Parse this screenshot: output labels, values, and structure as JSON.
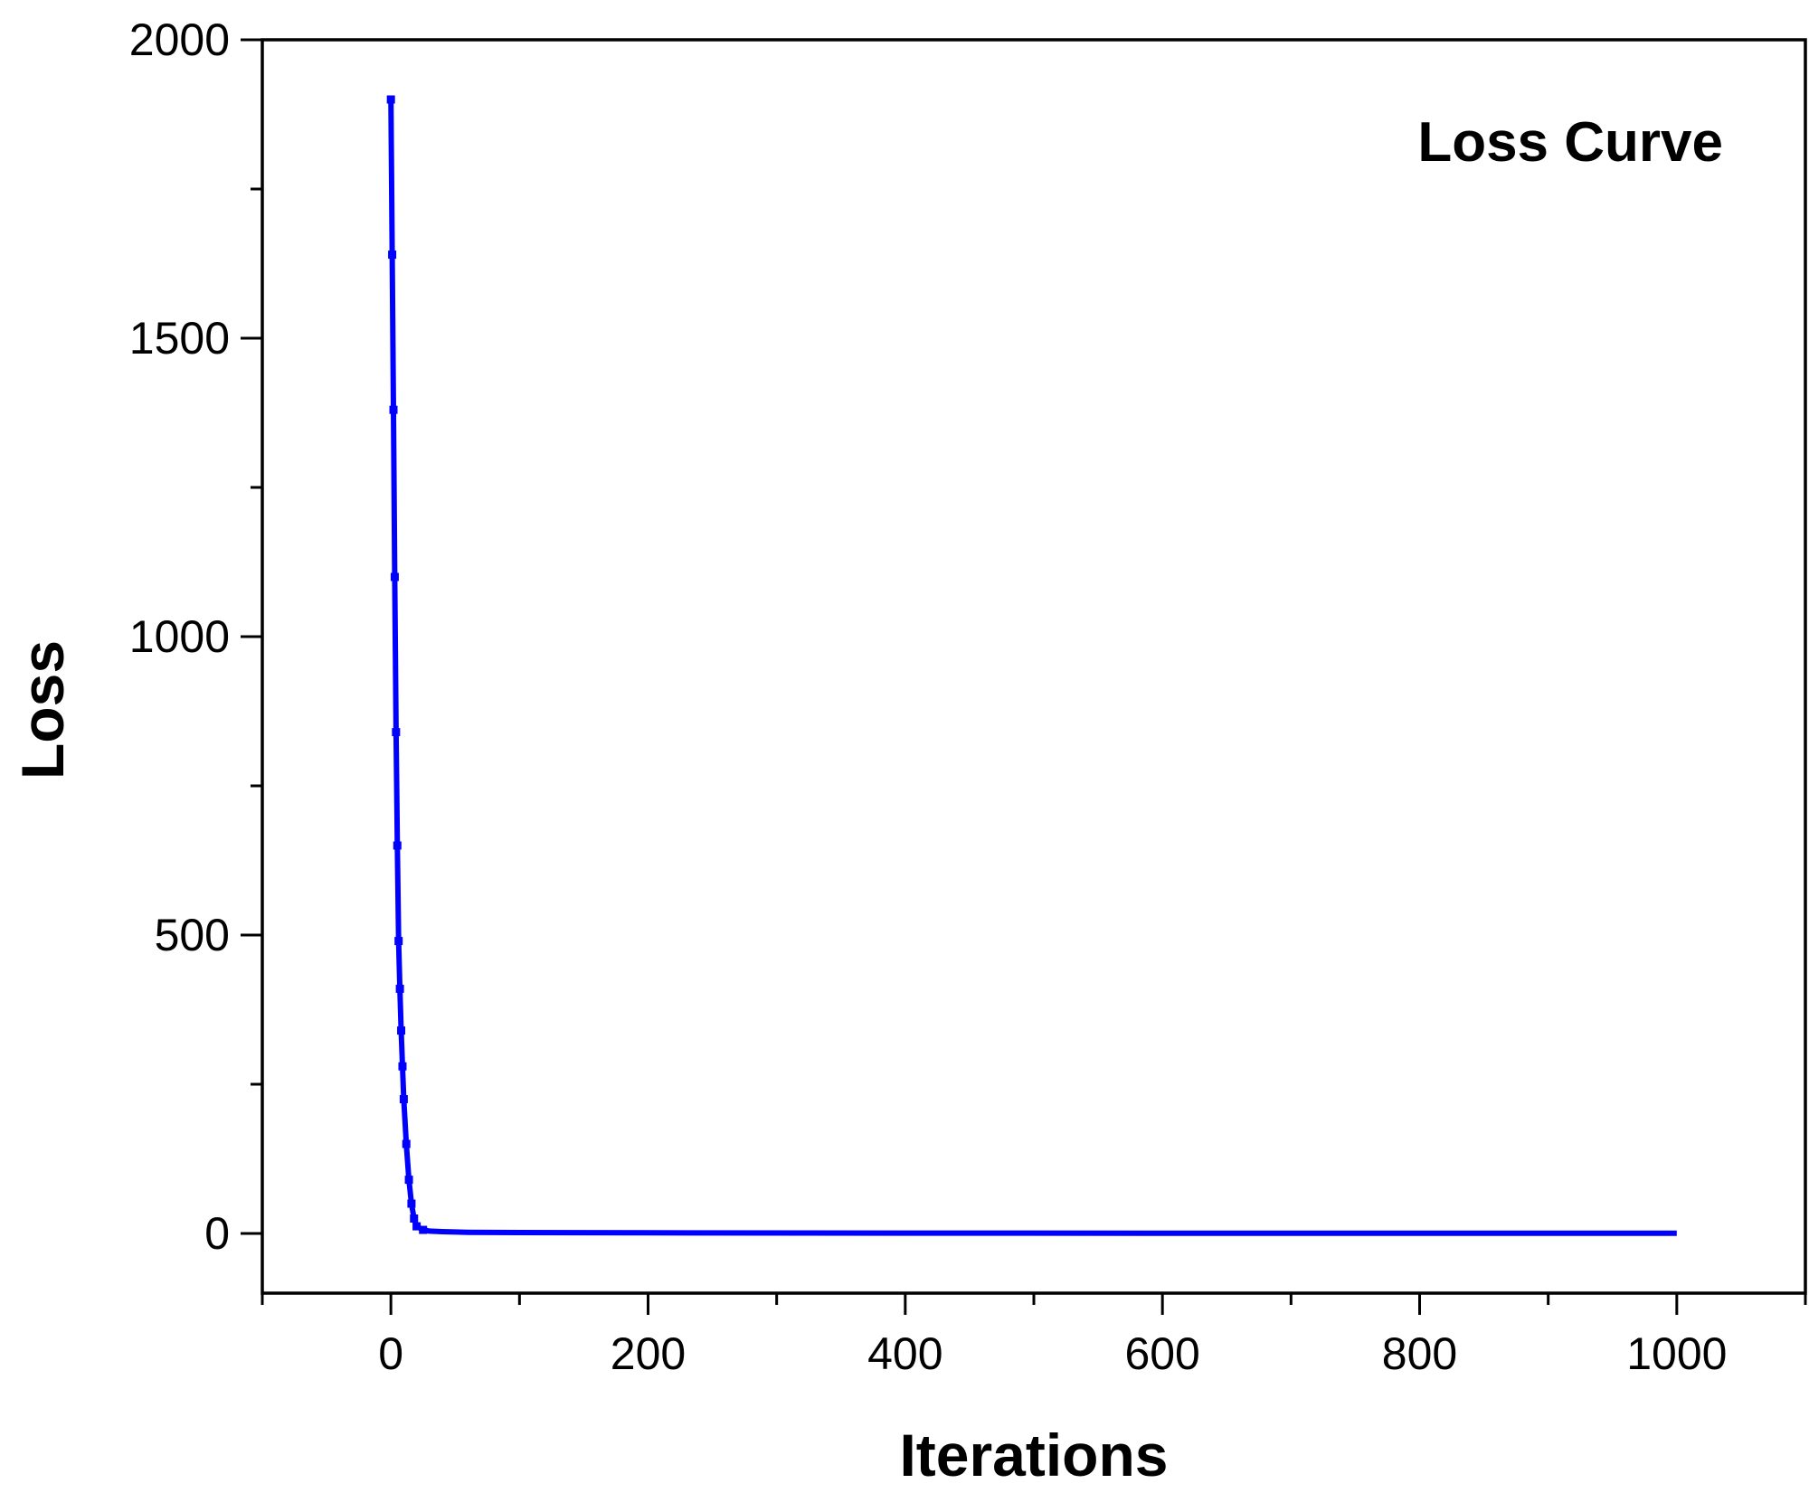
{
  "chart_data": {
    "type": "line",
    "title": "",
    "xlabel": "Iterations",
    "ylabel": "Loss",
    "xlim": [
      -100,
      1100
    ],
    "ylim": [
      -100,
      2000
    ],
    "x_ticks": [
      0,
      200,
      400,
      600,
      800,
      1000
    ],
    "x_minor_ticks": [
      -100,
      100,
      300,
      500,
      700,
      900,
      1100
    ],
    "y_ticks": [
      0,
      500,
      1000,
      1500,
      2000
    ],
    "y_minor_ticks": [
      250,
      750,
      1250,
      1750
    ],
    "grid": false,
    "legend_position": "top-right",
    "series": [
      {
        "name": "Loss Curve",
        "color": "#0000ff",
        "x": [
          0,
          1,
          2,
          3,
          4,
          5,
          6,
          7,
          8,
          9,
          10,
          12,
          14,
          16,
          18,
          20,
          25,
          30,
          40,
          60,
          100,
          200,
          400,
          600,
          800,
          1000
        ],
        "y": [
          1900,
          1640,
          1380,
          1100,
          840,
          650,
          490,
          410,
          340,
          280,
          225,
          150,
          90,
          50,
          25,
          12,
          6,
          4,
          3,
          2,
          1.5,
          1,
          0.6,
          0.5,
          0.4,
          0.3
        ]
      }
    ]
  }
}
